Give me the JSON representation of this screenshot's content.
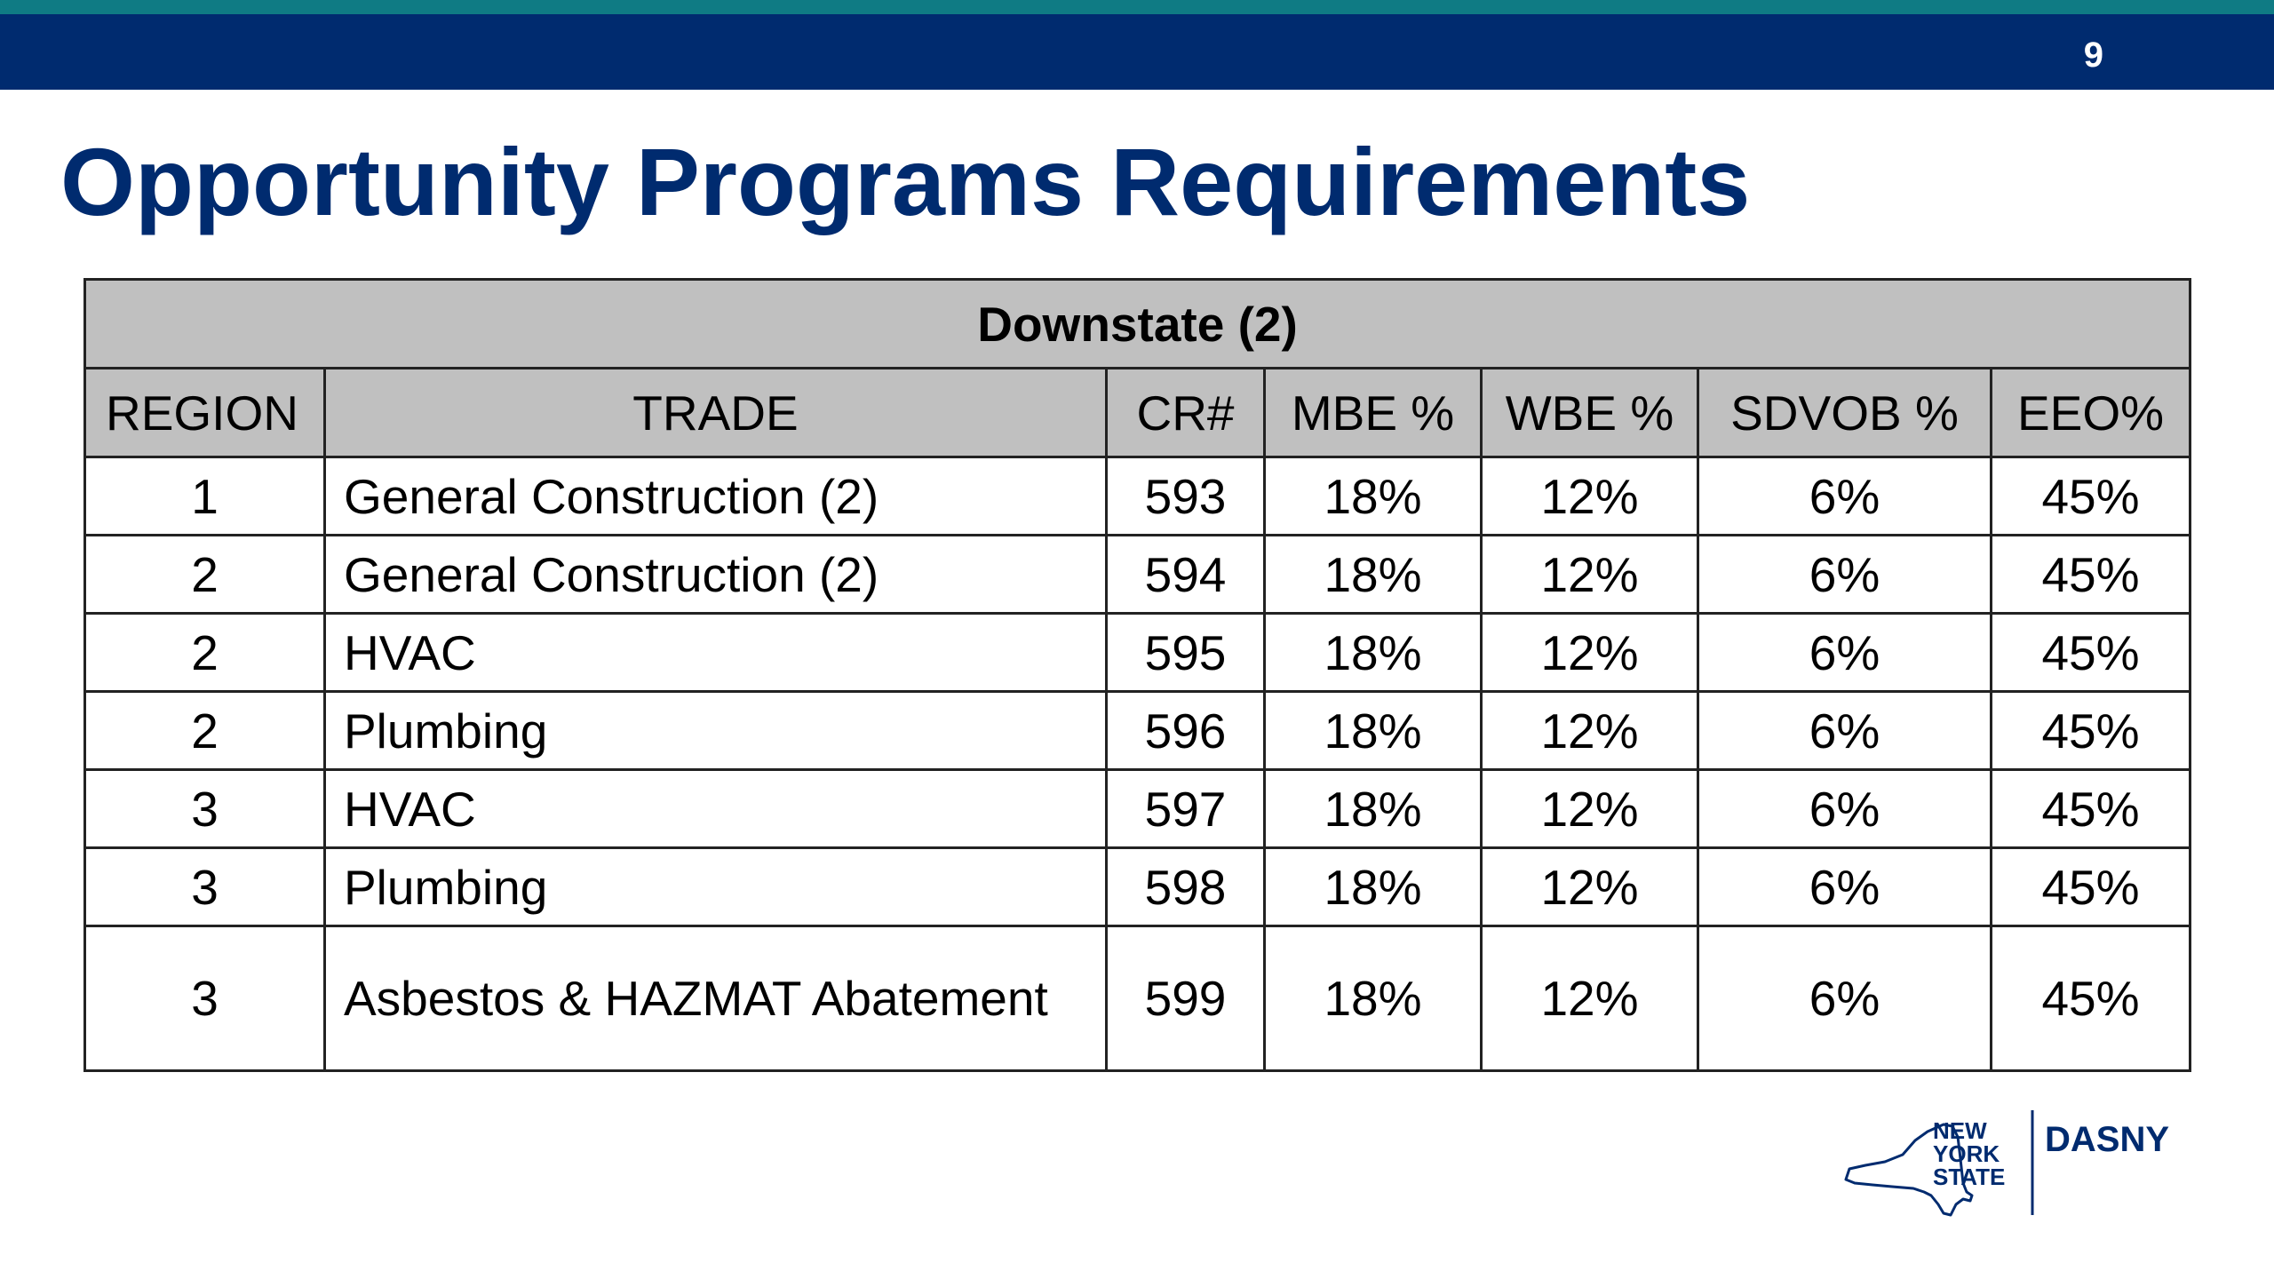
{
  "header": {
    "page_number": "9"
  },
  "title": "Opportunity Programs Requirements",
  "table": {
    "caption": "Downstate (2)",
    "columns": [
      "REGION",
      "TRADE",
      "CR#",
      "MBE %",
      "WBE %",
      "SDVOB %",
      "EEO%"
    ],
    "rows": [
      {
        "region": "1",
        "trade": "General Construction (2)",
        "cr": "593",
        "mbe": "18%",
        "wbe": "12%",
        "sdvob": "6%",
        "eeo": "45%"
      },
      {
        "region": "2",
        "trade": "General Construction (2)",
        "cr": "594",
        "mbe": "18%",
        "wbe": "12%",
        "sdvob": "6%",
        "eeo": "45%"
      },
      {
        "region": "2",
        "trade": "HVAC",
        "cr": "595",
        "mbe": "18%",
        "wbe": "12%",
        "sdvob": "6%",
        "eeo": "45%"
      },
      {
        "region": "2",
        "trade": "Plumbing",
        "cr": "596",
        "mbe": "18%",
        "wbe": "12%",
        "sdvob": "6%",
        "eeo": "45%"
      },
      {
        "region": "3",
        "trade": "HVAC",
        "cr": "597",
        "mbe": "18%",
        "wbe": "12%",
        "sdvob": "6%",
        "eeo": "45%"
      },
      {
        "region": "3",
        "trade": "Plumbing",
        "cr": "598",
        "mbe": "18%",
        "wbe": "12%",
        "sdvob": "6%",
        "eeo": "45%"
      },
      {
        "region": "3",
        "trade": "Asbestos & HAZMAT Abatement",
        "cr": "599",
        "mbe": "18%",
        "wbe": "12%",
        "sdvob": "6%",
        "eeo": "45%"
      }
    ]
  },
  "logo": {
    "state_line1": "NEW",
    "state_line2": "YORK",
    "state_line3": "STATE",
    "agency": "DASNY"
  },
  "colors": {
    "header_bar": "#002b6f",
    "header_stripe": "#0f7b84",
    "title": "#002b6f",
    "table_header_bg": "#c0c0c0"
  }
}
